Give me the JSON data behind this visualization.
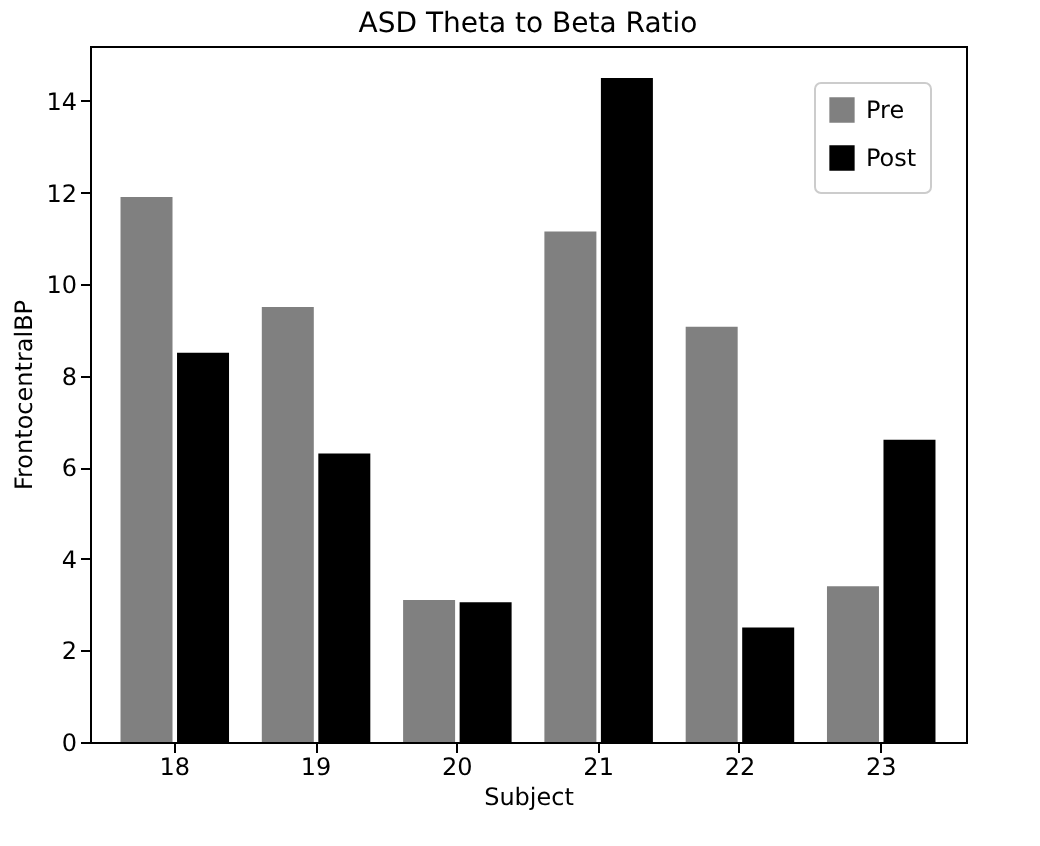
{
  "chart_data": {
    "type": "bar",
    "title": "ASD Theta to Beta Ratio",
    "xlabel": "Subject",
    "ylabel": "FrontocentralBP",
    "categories": [
      "18",
      "19",
      "20",
      "21",
      "22",
      "23"
    ],
    "series": [
      {
        "name": "Pre",
        "color": "#808080",
        "values": [
          11.9,
          9.5,
          3.1,
          11.15,
          9.07,
          3.4
        ]
      },
      {
        "name": "Post",
        "color": "#000000",
        "values": [
          8.5,
          6.3,
          3.05,
          14.5,
          2.5,
          6.6
        ]
      }
    ],
    "ylim": [
      0,
      15.2
    ],
    "yticks": [
      0,
      2,
      4,
      6,
      8,
      10,
      12,
      14
    ],
    "grid": false,
    "legend": "top right"
  }
}
